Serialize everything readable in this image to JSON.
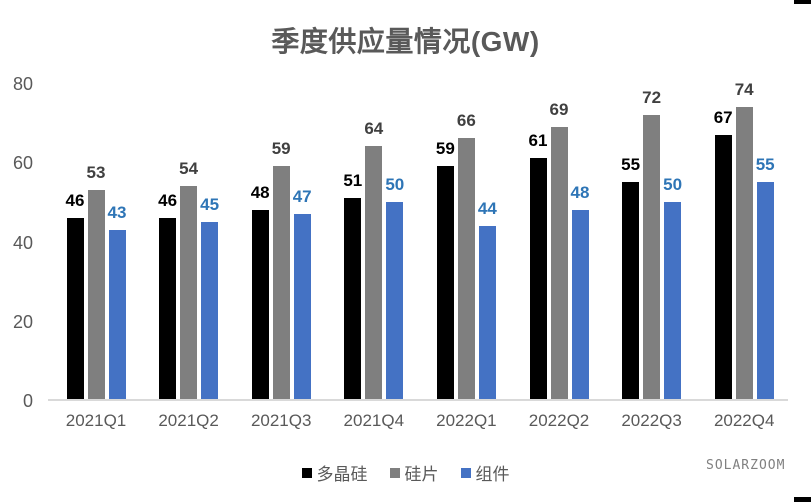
{
  "chart_data": {
    "type": "bar",
    "title": "季度供应量情况(GW)",
    "categories": [
      "2021Q1",
      "2021Q2",
      "2021Q3",
      "2021Q4",
      "2022Q1",
      "2022Q2",
      "2022Q3",
      "2022Q4"
    ],
    "series": [
      {
        "name": "多晶硅",
        "color": "#000000",
        "label_color": "#000000",
        "values": [
          46,
          46,
          48,
          51,
          59,
          61,
          55,
          67
        ]
      },
      {
        "name": "硅片",
        "color": "#7F7F7F",
        "label_color": "#404040",
        "values": [
          53,
          54,
          59,
          64,
          66,
          69,
          72,
          74
        ]
      },
      {
        "name": "组件",
        "color": "#4472C4",
        "label_color": "#2E75B6",
        "values": [
          43,
          45,
          47,
          50,
          44,
          48,
          50,
          55
        ]
      }
    ],
    "xlabel": "",
    "ylabel": "",
    "y_ticks": [
      0,
      20,
      40,
      60,
      80
    ],
    "ylim": [
      0,
      80
    ],
    "grid": false,
    "data_labels": true,
    "legend_position": "bottom",
    "text_color": "#595959",
    "baseline_color": "#D9D9D9"
  },
  "watermark": {
    "text": "SOLARZOOM",
    "color": "#808080"
  },
  "decorations": {
    "corner_mark_color": "#000000"
  }
}
